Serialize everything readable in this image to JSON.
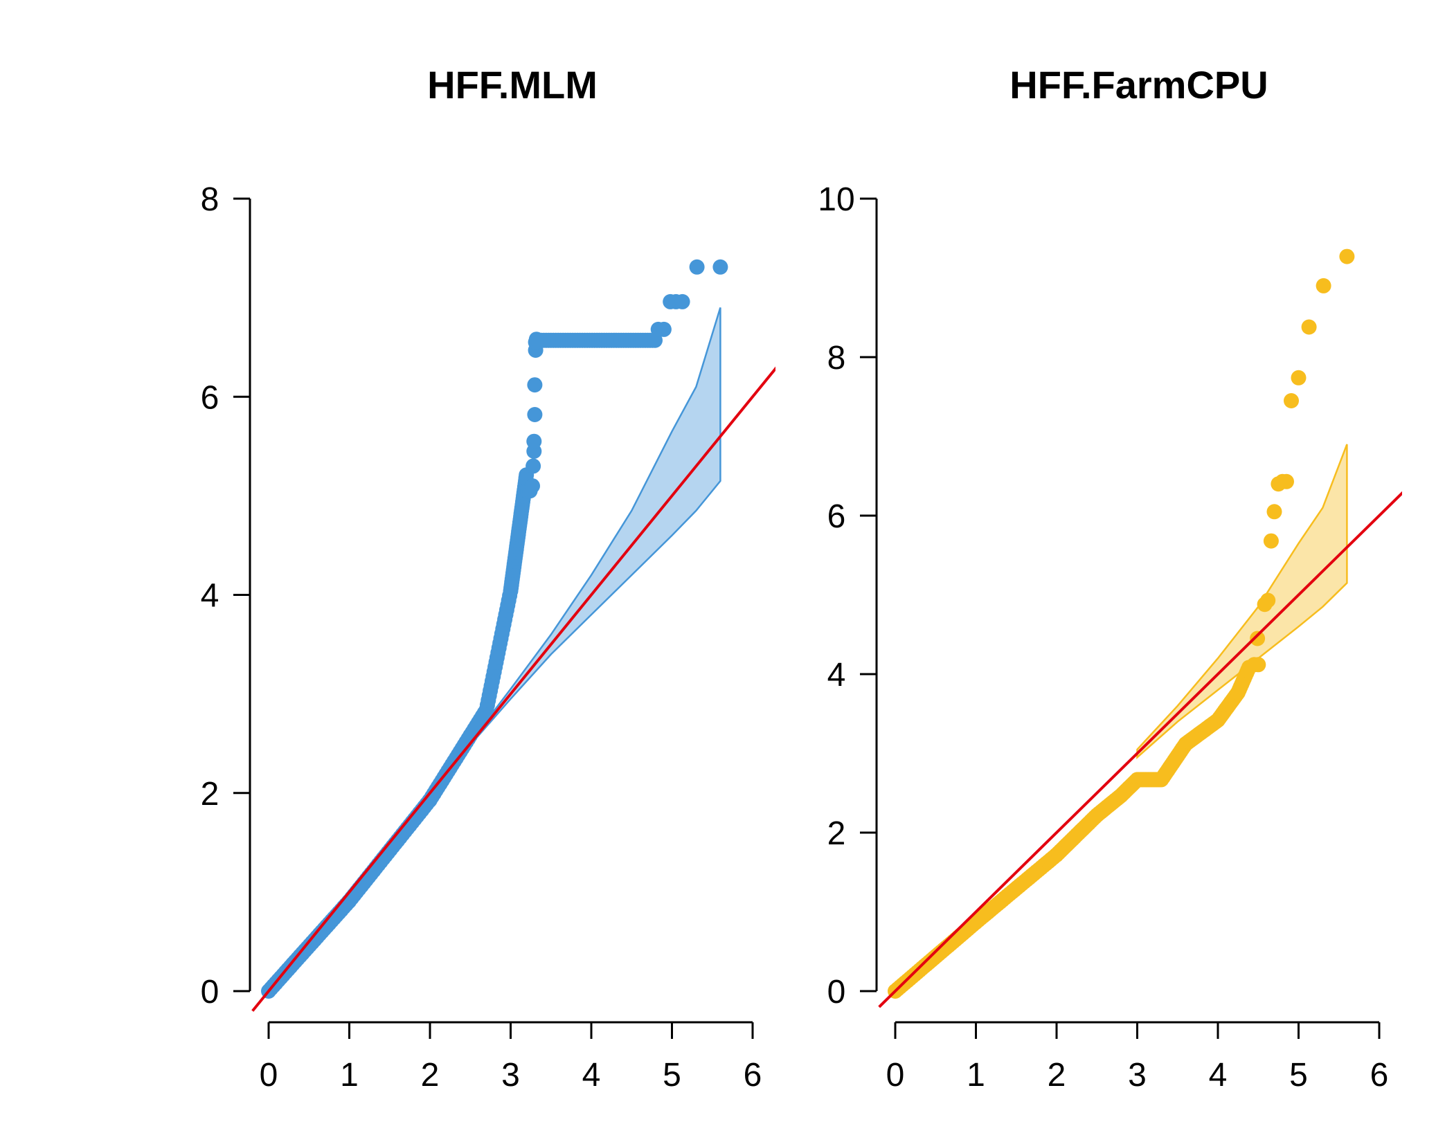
{
  "colors": {
    "background": "#ffffff",
    "axis": "#000000",
    "reference_line": "#e3000f"
  },
  "chart_data": [
    {
      "type": "scatter",
      "title": "HFF.MLM",
      "xlabel": "",
      "ylabel": "",
      "xlim": [
        0,
        6
      ],
      "ylim": [
        0,
        8
      ],
      "xticks": [
        "0",
        "1",
        "2",
        "3",
        "4",
        "5",
        "6"
      ],
      "yticks": [
        "0",
        "2",
        "4",
        "6",
        "8"
      ],
      "color": "#4596d8",
      "band_fill": "#b5d5f0",
      "reference_line": {
        "slope": 1,
        "intercept": 0
      },
      "confidence_band": {
        "x": [
          2.3,
          3.0,
          3.5,
          4.0,
          4.5,
          5.0,
          5.3,
          5.6
        ],
        "upper": [
          2.3,
          3.05,
          3.6,
          4.2,
          4.85,
          5.65,
          6.1,
          6.9
        ],
        "lower": [
          2.3,
          2.95,
          3.4,
          3.8,
          4.2,
          4.6,
          4.85,
          5.15
        ]
      },
      "series": [
        {
          "segments": [
            {
              "x0": 0,
              "x1": 1.0,
              "slope": 0.91,
              "step": 0.03
            },
            {
              "x0": 1.0,
              "x1": 2.0,
              "slope": 1.02,
              "step": 0.03
            },
            {
              "x0": 2.0,
              "x1": 2.7,
              "slope": 1.3,
              "step": 0.025
            },
            {
              "x0": 2.7,
              "x1": 3.0,
              "slope": 4.0,
              "step": 0.012
            },
            {
              "x0": 3.0,
              "x1": 3.2,
              "slope": 6.0,
              "step": 0.005
            }
          ],
          "points": [
            {
              "x": 3.21,
              "y": 5.05
            },
            {
              "x": 3.24,
              "y": 5.05
            },
            {
              "x": 3.27,
              "y": 5.1
            },
            {
              "x": 3.28,
              "y": 5.3
            },
            {
              "x": 3.29,
              "y": 5.45
            },
            {
              "x": 3.29,
              "y": 5.55
            },
            {
              "x": 3.3,
              "y": 5.82
            },
            {
              "x": 3.3,
              "y": 6.12
            },
            {
              "x": 3.31,
              "y": 6.47
            },
            {
              "x": 3.31,
              "y": 6.55
            },
            {
              "x": 3.32,
              "y": 6.58
            },
            {
              "x": 4.83,
              "y": 6.68
            },
            {
              "x": 4.9,
              "y": 6.68
            },
            {
              "x": 4.98,
              "y": 6.96
            },
            {
              "x": 5.05,
              "y": 6.96
            },
            {
              "x": 5.13,
              "y": 6.96
            },
            {
              "x": 5.31,
              "y": 7.31
            },
            {
              "x": 5.6,
              "y": 7.31
            }
          ],
          "plateaus": [
            {
              "x0": 3.32,
              "x1": 4.8,
              "y": 6.57,
              "step": 0.03
            }
          ]
        }
      ]
    },
    {
      "type": "scatter",
      "title": "HFF.FarmCPU",
      "xlabel": "",
      "ylabel": "",
      "xlim": [
        0,
        6
      ],
      "ylim": [
        0,
        10
      ],
      "xticks": [
        "0",
        "1",
        "2",
        "3",
        "4",
        "5",
        "6"
      ],
      "yticks": [
        "0",
        "2",
        "4",
        "6",
        "8",
        "10"
      ],
      "color": "#f7bd1e",
      "band_fill": "#fbe5a8",
      "reference_line": {
        "slope": 1,
        "intercept": 0
      },
      "confidence_band": {
        "x": [
          3.0,
          3.5,
          4.0,
          4.5,
          5.0,
          5.3,
          5.6
        ],
        "upper": [
          3.05,
          3.6,
          4.2,
          4.85,
          5.65,
          6.1,
          6.9
        ],
        "lower": [
          2.95,
          3.4,
          3.8,
          4.2,
          4.6,
          4.85,
          5.15
        ]
      },
      "series": [
        {
          "segments": [
            {
              "x0": 0,
              "x1": 1.0,
              "slope": 0.87,
              "step": 0.03
            },
            {
              "x0": 1.0,
              "x1": 2.0,
              "slope": 0.85,
              "step": 0.03
            },
            {
              "x0": 2.0,
              "x1": 2.5,
              "slope": 1.0,
              "step": 0.025
            },
            {
              "x0": 2.5,
              "x1": 2.8,
              "slope": 0.83,
              "step": 0.025
            },
            {
              "x0": 2.8,
              "x1": 3.0,
              "slope": 1.0,
              "step": 0.02
            },
            {
              "x0": 3.0,
              "x1": 3.3,
              "slope": 0.0,
              "step": 0.02
            },
            {
              "x0": 3.3,
              "x1": 3.6,
              "slope": 1.5,
              "step": 0.02
            },
            {
              "x0": 3.6,
              "x1": 4.0,
              "slope": 0.75,
              "step": 0.02
            },
            {
              "x0": 4.0,
              "x1": 4.25,
              "slope": 1.4,
              "step": 0.02
            },
            {
              "x0": 4.25,
              "x1": 4.4,
              "slope": 2.33,
              "step": 0.015
            }
          ],
          "points": [
            {
              "x": 4.45,
              "y": 4.12
            },
            {
              "x": 4.5,
              "y": 4.12
            },
            {
              "x": 4.49,
              "y": 4.45
            },
            {
              "x": 4.58,
              "y": 4.88
            },
            {
              "x": 4.62,
              "y": 4.93
            },
            {
              "x": 4.66,
              "y": 5.68
            },
            {
              "x": 4.7,
              "y": 6.05
            },
            {
              "x": 4.75,
              "y": 6.4
            },
            {
              "x": 4.8,
              "y": 6.43
            },
            {
              "x": 4.85,
              "y": 6.43
            },
            {
              "x": 4.91,
              "y": 7.45
            },
            {
              "x": 5.0,
              "y": 7.74
            },
            {
              "x": 5.13,
              "y": 8.38
            },
            {
              "x": 5.31,
              "y": 8.9
            },
            {
              "x": 5.6,
              "y": 9.27
            }
          ],
          "plateaus": []
        }
      ]
    }
  ]
}
